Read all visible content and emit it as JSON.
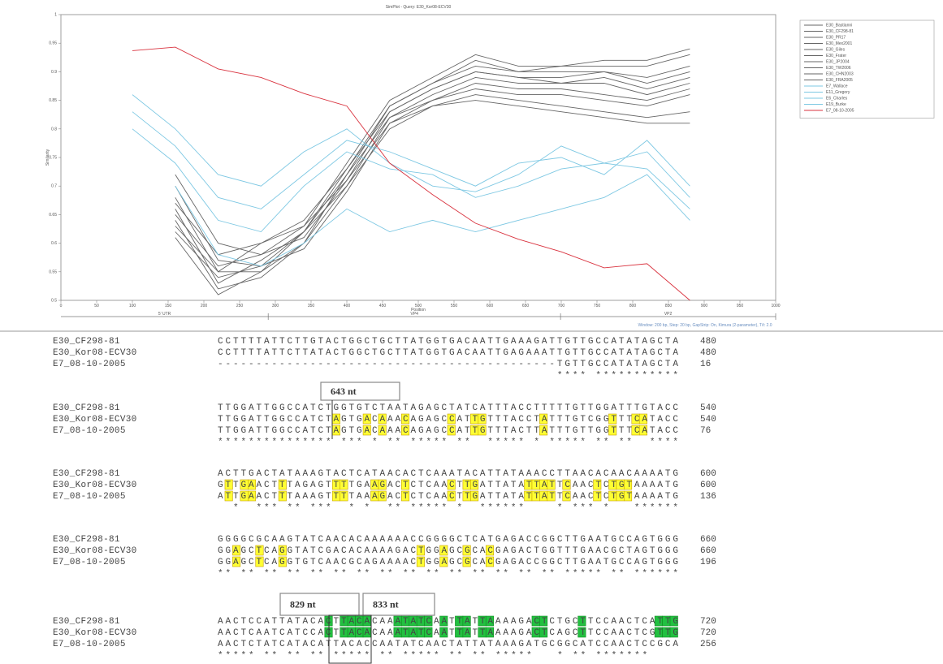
{
  "chart_data": {
    "type": "line",
    "title": "SimPlot - Query: E30_Kor08-ECV30",
    "x_label": "Position",
    "y_label": "Similarity",
    "x": [
      100,
      160,
      220,
      280,
      340,
      400,
      460,
      520,
      580,
      640,
      700,
      760,
      820,
      880
    ],
    "xlim": [
      0,
      1000
    ],
    "xticks": [
      0,
      50,
      100,
      150,
      200,
      250,
      300,
      350,
      400,
      450,
      500,
      550,
      600,
      650,
      700,
      750,
      800,
      850,
      900,
      950,
      1000
    ],
    "ylim": [
      0.5,
      1.0
    ],
    "yticks": [
      0.5,
      0.55,
      0.6,
      0.65,
      0.7,
      0.75,
      0.8,
      0.85,
      0.9,
      0.95,
      1
    ],
    "grid": false,
    "legend": "right",
    "series": [
      {
        "name": "E30_Bastianni",
        "color": "#666666",
        "values": [
          null,
          0.72,
          0.6,
          0.58,
          0.63,
          0.74,
          0.85,
          0.89,
          0.93,
          0.91,
          0.91,
          0.92,
          0.92,
          0.94
        ]
      },
      {
        "name": "E30_CF298-81",
        "color": "#666666",
        "values": [
          null,
          0.7,
          0.57,
          0.56,
          0.62,
          0.73,
          0.84,
          0.88,
          0.92,
          0.9,
          0.91,
          0.91,
          0.91,
          0.93
        ]
      },
      {
        "name": "E30_PR17",
        "color": "#666666",
        "values": [
          null,
          0.68,
          0.55,
          0.55,
          0.6,
          0.72,
          0.84,
          0.88,
          0.91,
          0.9,
          0.9,
          0.9,
          0.89,
          0.91
        ]
      },
      {
        "name": "E30_Mex2001",
        "color": "#666666",
        "values": [
          null,
          0.67,
          0.58,
          0.6,
          0.64,
          0.73,
          0.83,
          0.87,
          0.9,
          0.89,
          0.89,
          0.9,
          0.88,
          0.9
        ]
      },
      {
        "name": "E30_Giles",
        "color": "#666666",
        "values": [
          null,
          0.66,
          0.53,
          0.57,
          0.62,
          0.72,
          0.82,
          0.86,
          0.89,
          0.88,
          0.88,
          0.89,
          0.87,
          0.89
        ]
      },
      {
        "name": "E30_Frater",
        "color": "#666666",
        "values": [
          null,
          0.65,
          0.56,
          0.58,
          0.61,
          0.71,
          0.83,
          0.87,
          0.9,
          0.89,
          0.88,
          0.88,
          0.86,
          0.88
        ]
      },
      {
        "name": "E30_JP2004",
        "color": "#666666",
        "values": [
          null,
          0.64,
          0.52,
          0.54,
          0.6,
          0.7,
          0.82,
          0.85,
          0.88,
          0.87,
          0.87,
          0.86,
          0.85,
          0.87
        ]
      },
      {
        "name": "E30_TW2006",
        "color": "#666666",
        "values": [
          null,
          0.63,
          0.55,
          0.6,
          0.63,
          0.71,
          0.81,
          0.85,
          0.87,
          0.86,
          0.86,
          0.85,
          0.84,
          0.86
        ]
      },
      {
        "name": "E30_CHN2003",
        "color": "#666666",
        "values": [
          null,
          0.62,
          0.54,
          0.56,
          0.59,
          0.69,
          0.81,
          0.84,
          0.86,
          0.85,
          0.84,
          0.83,
          0.82,
          0.83
        ]
      },
      {
        "name": "E30_FRA2005",
        "color": "#666666",
        "values": [
          null,
          0.61,
          0.51,
          0.55,
          0.62,
          0.7,
          0.8,
          0.84,
          0.85,
          0.84,
          0.83,
          0.82,
          0.81,
          0.81
        ]
      },
      {
        "name": "E7_Wallace",
        "color": "#7ec8e3",
        "values": [
          0.86,
          0.8,
          0.72,
          0.7,
          0.76,
          0.8,
          0.74,
          0.7,
          0.69,
          0.72,
          0.77,
          0.74,
          0.76,
          0.68
        ]
      },
      {
        "name": "E11_Gregory",
        "color": "#7ec8e3",
        "values": [
          0.83,
          0.77,
          0.68,
          0.66,
          0.72,
          0.78,
          0.76,
          0.73,
          0.7,
          0.74,
          0.75,
          0.72,
          0.78,
          0.7
        ]
      },
      {
        "name": "E6_Charles",
        "color": "#7ec8e3",
        "values": [
          0.8,
          0.74,
          0.64,
          0.62,
          0.7,
          0.76,
          0.73,
          0.72,
          0.68,
          0.7,
          0.73,
          0.74,
          0.73,
          0.66
        ]
      },
      {
        "name": "E19_Burke",
        "color": "#7ec8e3",
        "values": [
          null,
          0.7,
          0.58,
          0.56,
          0.6,
          0.66,
          0.62,
          0.64,
          0.62,
          0.64,
          0.66,
          0.68,
          0.72,
          0.64
        ]
      },
      {
        "name": "E7_08-10-2005",
        "color": "#d9333f",
        "values": [
          0.937,
          0.943,
          0.905,
          0.89,
          0.862,
          0.84,
          0.74,
          0.685,
          0.635,
          0.607,
          0.585,
          0.557,
          0.564,
          0.5
        ]
      }
    ],
    "regions": [
      {
        "label": "5' UTR",
        "start": 0,
        "end": 290
      },
      {
        "label": "VP4",
        "start": 290,
        "end": 699
      },
      {
        "label": "VP2",
        "start": 699,
        "end": 1000
      }
    ],
    "annotation": "Window: 200 bp, Step: 20 bp, GapStrip: On, Kimura (2-parameter), T/t: 2.0"
  },
  "alignment": {
    "blocks": [
      {
        "highlight": "green",
        "labels": [],
        "consensus": "                                            **** ***********",
        "rows": [
          {
            "name": "E30_CF298-81",
            "sequence": "CCTTTTATTCTTGTACTGGCTGCTTATGGTGACAATTGAAAGATTGTTGCCATATAGCTA",
            "end": 480
          },
          {
            "name": "E30_Kor08-ECV30",
            "sequence": "CCTTTTATTCTTATACTGGCTGCTTATGGTGACAATTGAGAAATTGTTGCCATATAGCTA",
            "end": 480
          },
          {
            "name": "E7_08-10-2005",
            "sequence": "--------------------------------------------TGTTGCCATATAGCTA",
            "end": 16
          }
        ]
      },
      {
        "highlight": "yellow",
        "labels": [
          "643 nt"
        ],
        "consensus": "*************** *** * ** ***** **  ***** * ***** ** **  ****",
        "rows": [
          {
            "name": "E30_CF298-81",
            "sequence": "TTGGATTGGCCATCTGGTGTCTAATAGAGCTATCATTTACCTTTTTGTTGGATTTGTACC",
            "end": 540
          },
          {
            "name": "E30_Kor08-ECV30",
            "sequence": "TTGGATTGGCCATCTAGTGACAAACAGAGCCATTGTTTACCTATTTGTCGGTTTCATACC",
            "end": 540
          },
          {
            "name": "E7_08-10-2005",
            "sequence": "TTGGATTGGCCATCTAGTGACAAACAGAGCCATTGTTTACTTATTTGTTGGTTTCATACC",
            "end": 76
          }
        ]
      },
      {
        "highlight": "yellow",
        "labels": [],
        "consensus": "  *  *** ** ***  * *  ** ***** *  ******    * *** *   ******",
        "rows": [
          {
            "name": "E30_CF298-81",
            "sequence": "ACTTGACTATAAAGTACTCATAACACTCAAATACATTATAAACCTTAACACAACAAAATG",
            "end": 600
          },
          {
            "name": "E30_Kor08-ECV30",
            "sequence": "GTTGAACTTTAGAGTTTTGAAGACTCTCAACTTGATTATATTATTCAACTCTGTAAAATG",
            "end": 600
          },
          {
            "name": "E7_08-10-2005",
            "sequence": "ATTGAACTTTAAAGTTTTAAAGACTCTCAACTTGATTATATTATTCAACTCTGTAAAATG",
            "end": 136
          }
        ]
      },
      {
        "highlight": "yellow",
        "labels": [],
        "consensus": "** ** ** ** ** ** ** ** ** ** ** ** ** ** ** ***** ** ******",
        "rows": [
          {
            "name": "E30_CF298-81",
            "sequence": "GGGGCGCAAGTATCAACACAAAAAACCGGGGCTCATGAGACCGGCTTGAATGCCAGTGGG",
            "end": 660
          },
          {
            "name": "E30_Kor08-ECV30",
            "sequence": "GGAGCTCAGGTATCGACACAAAAGACTGGAGCGCACGAGACTGGTTTGAACGCTAGTGGG",
            "end": 660
          },
          {
            "name": "E7_08-10-2005",
            "sequence": "GGAGCTCAGGTGTCAACGCAGAAAACTGGAGCGCACGAGACCGGCTTGAATGCCAGTGGG",
            "end": 196
          }
        ]
      },
      {
        "highlight": "green",
        "labels": [
          "829 nt",
          "833 nt"
        ],
        "consensus": "***** ** ** ** ***** ** ***** ** ** *****   * ** *******",
        "rows": [
          {
            "name": "E30_CF298-81",
            "sequence": "AACTCCATTATACACTTACACAAATATCAATTATTAAAAGACTCTGCTTCCAACTCATTG",
            "end": 720
          },
          {
            "name": "E30_Kor08-ECV30",
            "sequence": "AACTCAATCATCCACTTACACAAATATCAATTATTAAAAGACTCAGCTTCCAACTCGTTG",
            "end": 720
          },
          {
            "name": "E7_08-10-2005",
            "sequence": "AACTCTATCATACATTACACCAATATCAACTATTATAAAGATGCGGCATCCAACTCCGCA",
            "end": 256
          }
        ]
      }
    ]
  }
}
